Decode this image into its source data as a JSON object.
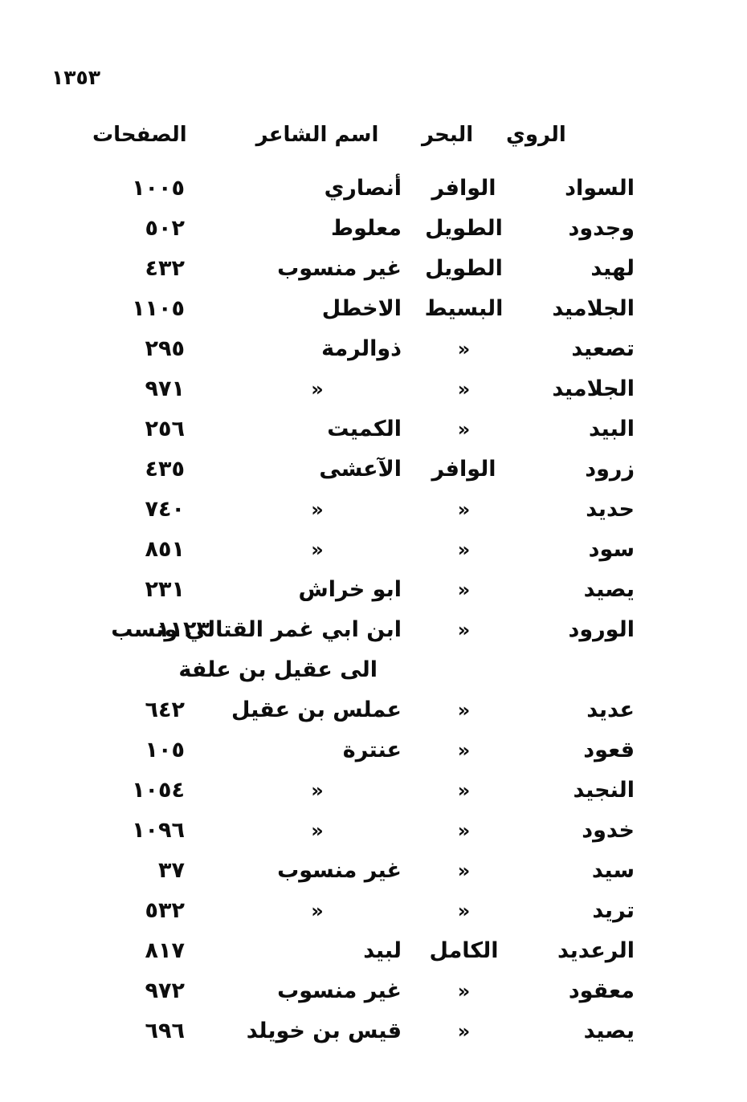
{
  "page": {
    "folio_number": "١٣٥٣"
  },
  "table": {
    "ditto_mark": "«",
    "headers": {
      "rawi": "الروي",
      "bahr": "البحر",
      "poet": "اسم الشاعر",
      "pages": "الصفحات"
    },
    "rows": [
      {
        "rawi": "السواد",
        "bahr": "الوافر",
        "poet": "أنصاري",
        "page": "١٠٠٥"
      },
      {
        "rawi": "وجدود",
        "bahr": "الطويل",
        "poet": "معلوط",
        "page": "٥٠٢"
      },
      {
        "rawi": "لهيد",
        "bahr": "الطويل",
        "poet": "غير منسوب",
        "page": "٤٣٢"
      },
      {
        "rawi": "الجلاميد",
        "bahr": "البسيط",
        "poet": "الاخطل",
        "page": "١١٠٥"
      },
      {
        "rawi": "تصعيد",
        "bahr": "«",
        "poet": "ذوالرمة",
        "page": "٢٩٥"
      },
      {
        "rawi": "الجلاميد",
        "bahr": "«",
        "poet": "«",
        "page": "٩٧١"
      },
      {
        "rawi": "البيد",
        "bahr": "«",
        "poet": "الكميت",
        "page": "٢٥٦"
      },
      {
        "rawi": "زرود",
        "bahr": "الوافر",
        "poet": "الآعشى",
        "page": "٤٣٥"
      },
      {
        "rawi": "حديد",
        "bahr": "«",
        "poet": "«",
        "page": "٧٤٠"
      },
      {
        "rawi": "سود",
        "bahr": "«",
        "poet": "«",
        "page": "٨٥١"
      },
      {
        "rawi": "يصيد",
        "bahr": "«",
        "poet": "ابو خراش",
        "page": "٢٣١"
      },
      {
        "rawi": "الورود",
        "bahr": "«",
        "poet": "ابن ابي غمر القتالي ونسب",
        "poet_line2": "الى عقيل بن علفة",
        "page": "١١٢٣"
      },
      {
        "rawi": "عديد",
        "bahr": "«",
        "poet": "عملس بن عقيل",
        "page": "٦٤٢"
      },
      {
        "rawi": "قعود",
        "bahr": "«",
        "poet": "عنترة",
        "page": "١٠٥"
      },
      {
        "rawi": "النجيد",
        "bahr": "«",
        "poet": "«",
        "page": "١٠٥٤"
      },
      {
        "rawi": "خدود",
        "bahr": "«",
        "poet": "«",
        "page": "١٠٩٦"
      },
      {
        "rawi": "سيد",
        "bahr": "«",
        "poet": "غير منسوب",
        "page": "٣٧"
      },
      {
        "rawi": "تريد",
        "bahr": "«",
        "poet": "«",
        "page": "٥٣٢"
      },
      {
        "rawi": "الرعديد",
        "bahr": "الكامل",
        "poet": "لبيد",
        "page": "٨١٧"
      },
      {
        "rawi": "معقود",
        "bahr": "«",
        "poet": "غير منسوب",
        "page": "٩٧٢"
      },
      {
        "rawi": "يصيد",
        "bahr": "«",
        "poet": "قيس بن خويلد",
        "page": "٦٩٦"
      }
    ]
  }
}
